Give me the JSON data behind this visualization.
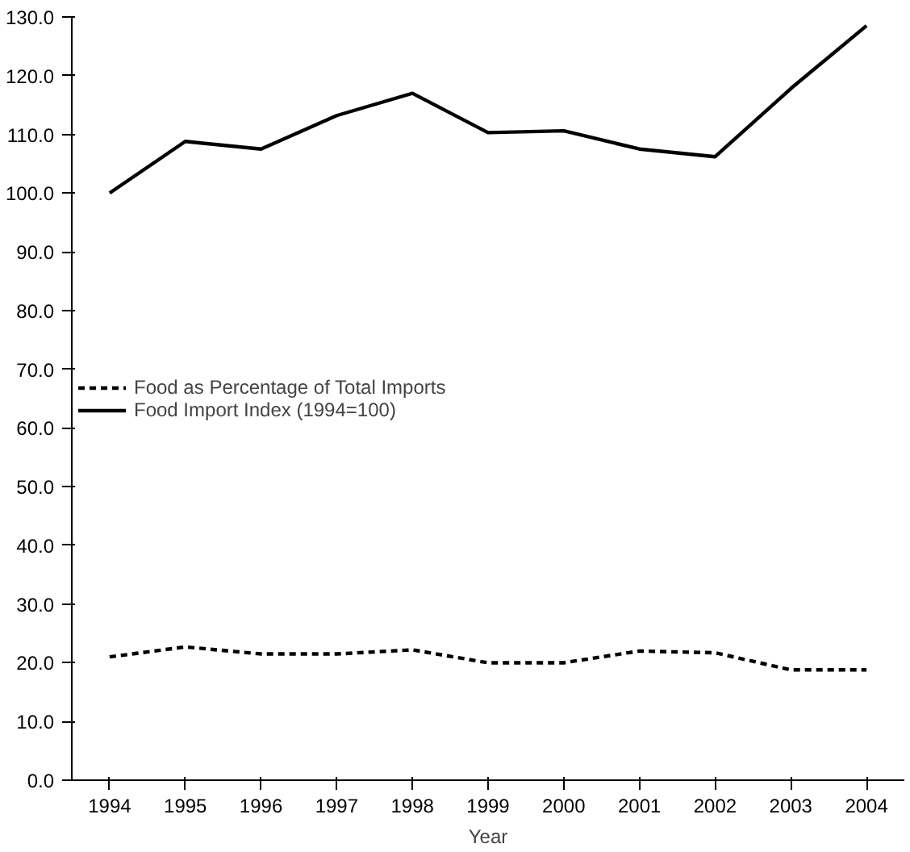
{
  "chart_data": {
    "type": "line",
    "xlabel": "Year",
    "categories": [
      "1994",
      "1995",
      "1996",
      "1997",
      "1998",
      "1999",
      "2000",
      "2001",
      "2002",
      "2003",
      "2004"
    ],
    "series": [
      {
        "name": "Food as Percentage of Total Imports",
        "color": "#000000",
        "line_style": "dashed",
        "values": [
          21.0,
          22.7,
          21.5,
          21.5,
          22.2,
          20.0,
          20.0,
          22.0,
          21.7,
          18.8,
          18.8
        ]
      },
      {
        "name": "Food Import Index (1994=100)",
        "color": "#000000",
        "line_style": "solid",
        "values": [
          100.0,
          108.8,
          107.5,
          113.2,
          117.0,
          110.3,
          110.6,
          107.5,
          106.2,
          117.8,
          128.5
        ]
      }
    ],
    "ylim": [
      0,
      130
    ],
    "yticks": [
      {
        "value": 0,
        "label": "0.0"
      },
      {
        "value": 10,
        "label": "10.0"
      },
      {
        "value": 20,
        "label": "20.0"
      },
      {
        "value": 30,
        "label": "30.0"
      },
      {
        "value": 40,
        "label": "40.0"
      },
      {
        "value": 50,
        "label": "50.0"
      },
      {
        "value": 60,
        "label": "60.0"
      },
      {
        "value": 70,
        "label": "70.0"
      },
      {
        "value": 80,
        "label": "80.0"
      },
      {
        "value": 90,
        "label": "90.0"
      },
      {
        "value": 100,
        "label": "100.0"
      },
      {
        "value": 110,
        "label": "110.0"
      },
      {
        "value": 120,
        "label": "120.0"
      },
      {
        "value": 130,
        "label": "130.0"
      }
    ],
    "grid": false,
    "legend": "left",
    "marker": "none"
  }
}
